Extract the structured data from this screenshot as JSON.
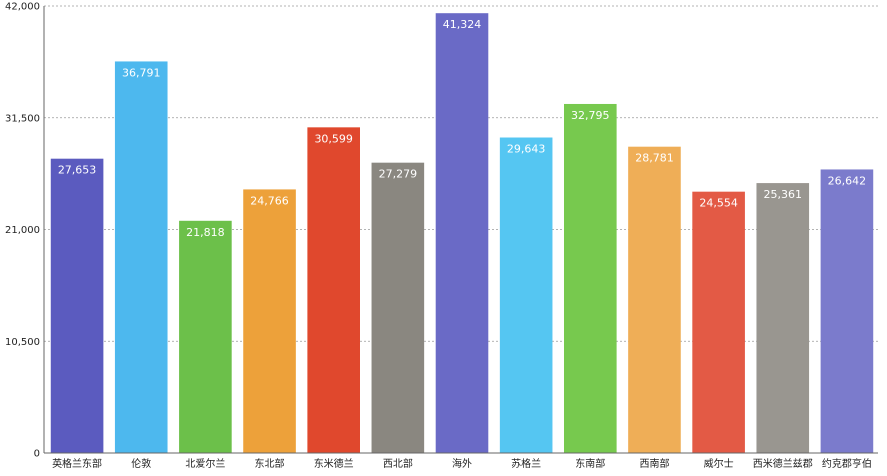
{
  "chart_data": {
    "type": "bar",
    "categories": [
      "英格兰东部",
      "伦敦",
      "北爱尔兰",
      "东北部",
      "东米德兰",
      "西北部",
      "海外",
      "苏格兰",
      "东南部",
      "西南部",
      "威尔士",
      "西米德兰兹郡",
      "约克郡亨伯"
    ],
    "values": [
      27653,
      36791,
      21818,
      24766,
      30599,
      27279,
      41324,
      29643,
      32795,
      28781,
      24554,
      25361,
      26642
    ],
    "value_labels": [
      "27,653",
      "36,791",
      "21,818",
      "24,766",
      "30,599",
      "27,279",
      "41,324",
      "29,643",
      "32,795",
      "28,781",
      "24,554",
      "25,361",
      "26,642"
    ],
    "colors": [
      "#5b5bbf",
      "#4db8ee",
      "#6cc04a",
      "#eda13a",
      "#e0482d",
      "#8a8780",
      "#6a6ac6",
      "#55c6f2",
      "#77c94e",
      "#efae57",
      "#e35a45",
      "#999690",
      "#7b7bcc"
    ],
    "yticks": [
      0,
      10500,
      21000,
      31500,
      42000
    ],
    "ytick_labels": [
      "0",
      "10,500",
      "21,000",
      "31,500",
      "42,000"
    ],
    "ylim": [
      0,
      42000
    ],
    "grid": true,
    "title": "",
    "xlabel": "",
    "ylabel": ""
  }
}
